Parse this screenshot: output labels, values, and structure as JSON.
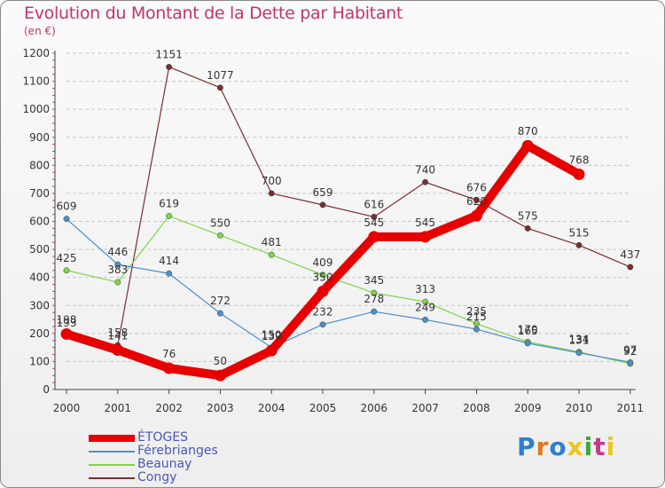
{
  "chart_data": {
    "type": "line",
    "title": "Evolution du Montant de la Dette par Habitant",
    "unit": "(en €)",
    "x": [
      "2000",
      "2001",
      "2002",
      "2003",
      "2004",
      "2005",
      "2006",
      "2007",
      "2008",
      "2009",
      "2010",
      "2011"
    ],
    "ylim": [
      0,
      1200
    ],
    "yticks": [
      0,
      100,
      200,
      300,
      400,
      500,
      600,
      700,
      800,
      900,
      1000,
      1100,
      1200
    ],
    "grid": "horizontal dashed",
    "legend": "bottom-left",
    "series": [
      {
        "name": "ÉTOGES",
        "color": "#e60000",
        "values": [
          198,
          141,
          76,
          50,
          139,
          350,
          545,
          545,
          620,
          870,
          768,
          null
        ]
      },
      {
        "name": "Férebrianges",
        "color": "#4c8fca",
        "values": [
          609,
          446,
          414,
          272,
          150,
          232,
          278,
          249,
          215,
          165,
          131,
          97
        ]
      },
      {
        "name": "Beaunay",
        "color": "#7fd34d",
        "values": [
          425,
          383,
          619,
          550,
          481,
          409,
          345,
          313,
          235,
          170,
          134,
          92
        ]
      },
      {
        "name": "Congy",
        "color": "#7a2e2e",
        "values": [
          193,
          158,
          1151,
          1077,
          700,
          659,
          616,
          740,
          676,
          575,
          515,
          437
        ]
      }
    ]
  },
  "logo": {
    "letters": [
      "P",
      "r",
      "o",
      "x",
      "i",
      "t",
      "i"
    ],
    "colors": [
      "#2e7fd0",
      "#e07a1a",
      "#2e7fd0",
      "#e8c81a",
      "#3fa83a",
      "#c23b8a",
      "#e8c81a"
    ]
  }
}
